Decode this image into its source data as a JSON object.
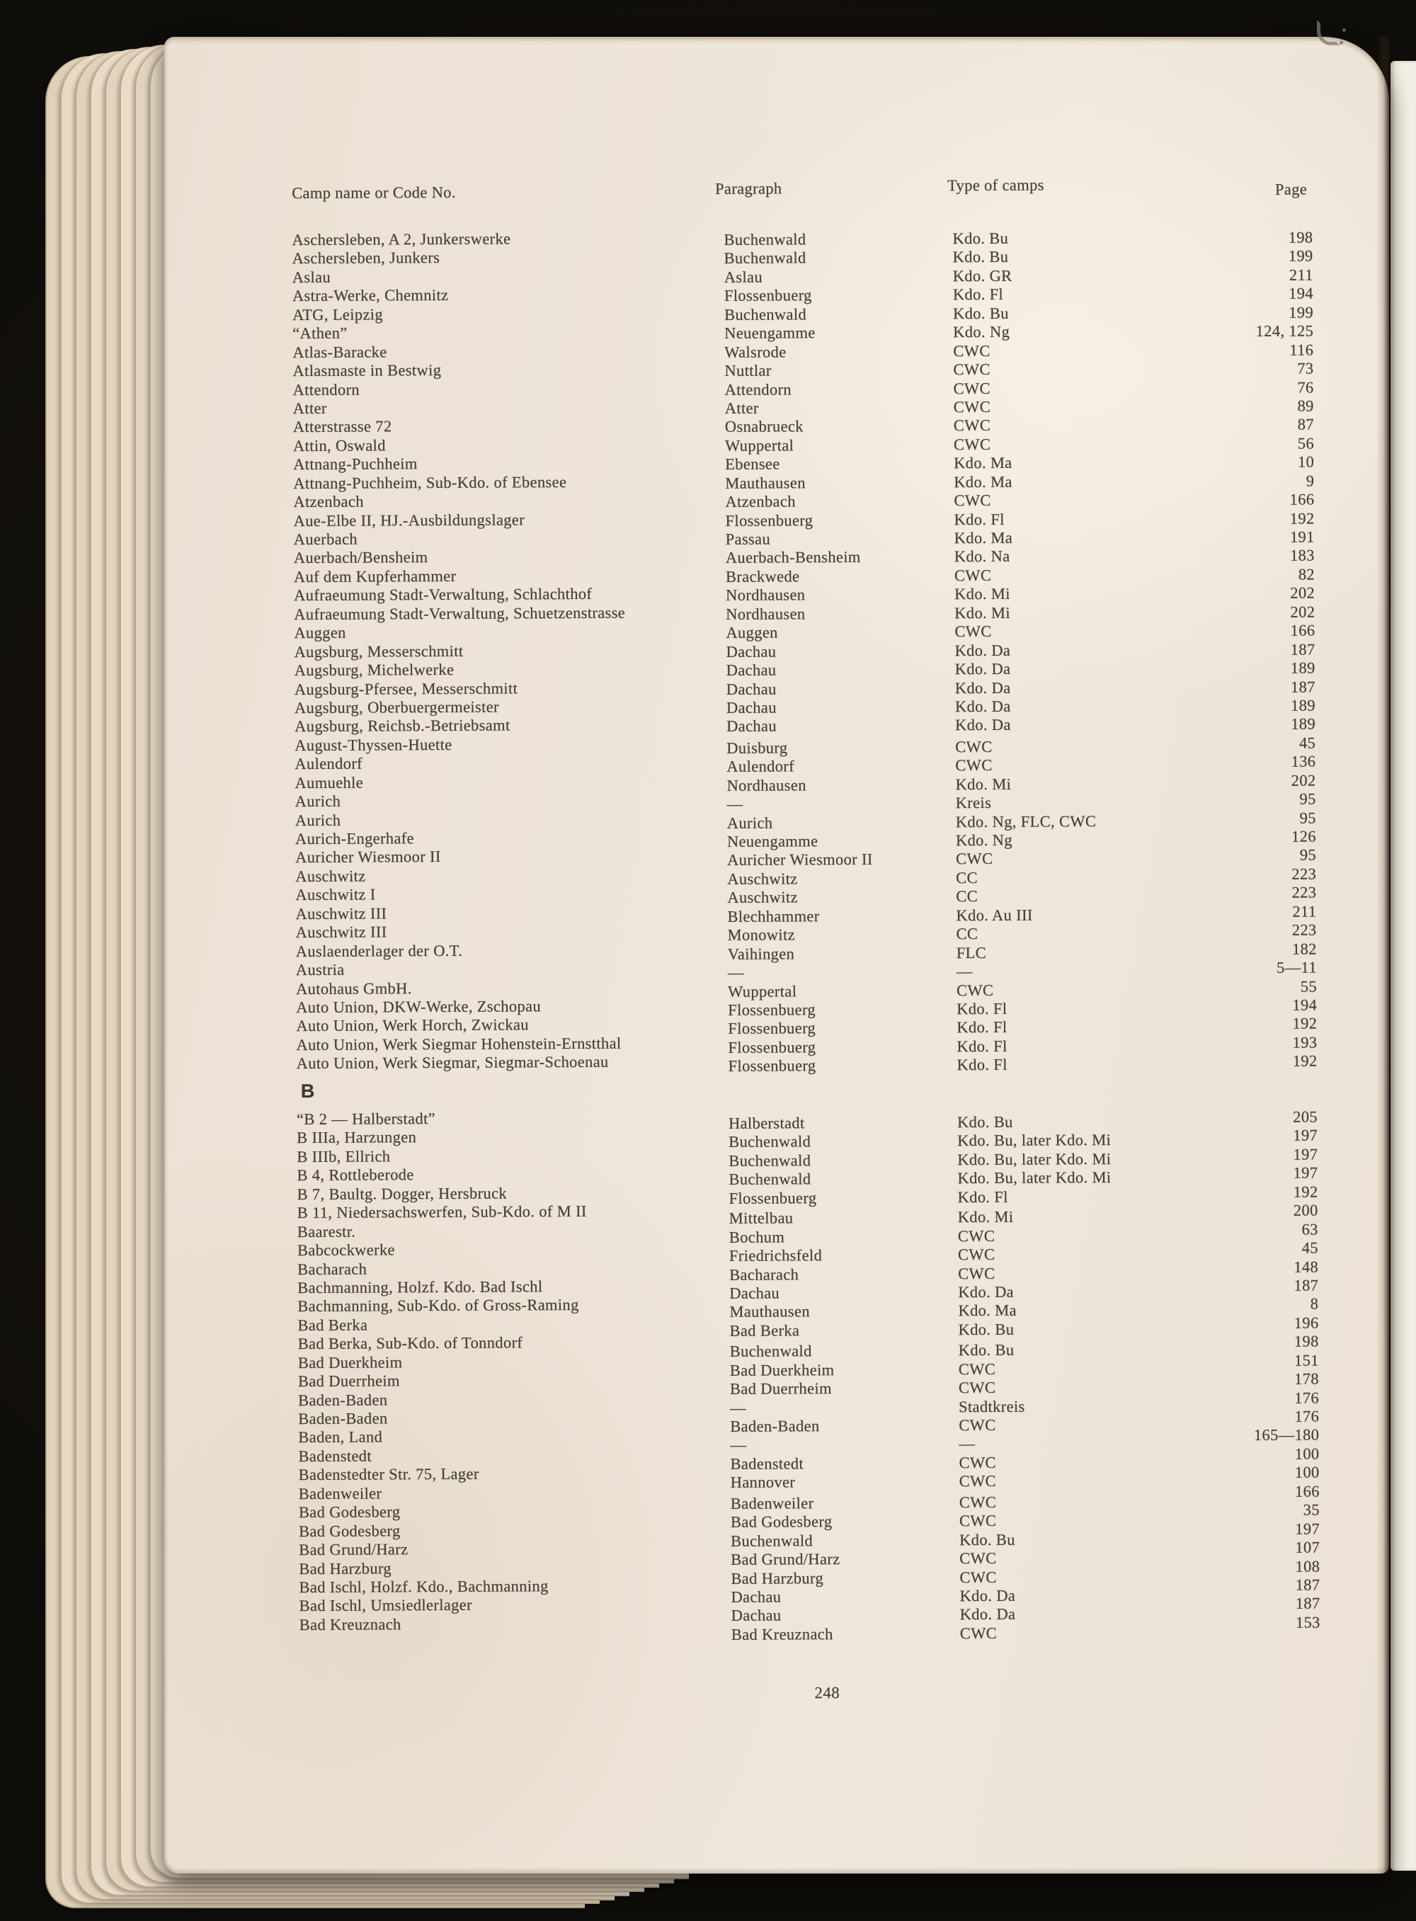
{
  "page": {
    "folio": "248",
    "colors": {
      "paper": "#efe7dc",
      "ink": "#46413a",
      "background": "#14110d",
      "next_page": "#f2efe7"
    }
  },
  "table": {
    "headers": {
      "camp": "Camp name or Code No.",
      "paragraph": "Paragraph",
      "type": "Type of camps",
      "page": "Page"
    },
    "sections": [
      {
        "label": "",
        "rows": [
          {
            "camp": "Aschersleben, A 2, Junkerswerke",
            "paragraph": "Buchenwald",
            "type": "Kdo. Bu",
            "page": "198"
          },
          {
            "camp": "Aschersleben, Junkers",
            "paragraph": "Buchenwald",
            "type": "Kdo. Bu",
            "page": "199"
          },
          {
            "camp": "Aslau",
            "paragraph": "Aslau",
            "type": "Kdo. GR",
            "page": "211"
          },
          {
            "camp": "Astra-Werke, Chemnitz",
            "paragraph": "Flossenbuerg",
            "type": "Kdo. Fl",
            "page": "194"
          },
          {
            "camp": "ATG, Leipzig",
            "paragraph": "Buchenwald",
            "type": "Kdo. Bu",
            "page": "199"
          },
          {
            "camp": "“Athen”",
            "paragraph": "Neuengamme",
            "type": "Kdo. Ng",
            "page": "124, 125"
          },
          {
            "camp": "Atlas-Baracke",
            "paragraph": "Walsrode",
            "type": "CWC",
            "page": "116"
          },
          {
            "camp": "Atlasmaste in Bestwig",
            "paragraph": "Nuttlar",
            "type": "CWC",
            "page": "73"
          },
          {
            "camp": "Attendorn",
            "paragraph": "Attendorn",
            "type": "CWC",
            "page": "76"
          },
          {
            "camp": "Atter",
            "paragraph": "Atter",
            "type": "CWC",
            "page": "89"
          },
          {
            "camp": "Atterstrasse 72",
            "paragraph": "Osnabrueck",
            "type": "CWC",
            "page": "87"
          },
          {
            "camp": "Attin, Oswald",
            "paragraph": "Wuppertal",
            "type": "CWC",
            "page": "56"
          },
          {
            "camp": "Attnang-Puchheim",
            "paragraph": "Ebensee",
            "type": "Kdo. Ma",
            "page": "10"
          },
          {
            "camp": "Attnang-Puchheim, Sub-Kdo. of Ebensee",
            "paragraph": "Mauthausen",
            "type": "Kdo. Ma",
            "page": "9"
          },
          {
            "camp": "Atzenbach",
            "paragraph": "Atzenbach",
            "type": "CWC",
            "page": "166"
          },
          {
            "camp": "Aue-Elbe II, HJ.-Ausbildungslager",
            "paragraph": "Flossenbuerg",
            "type": "Kdo. Fl",
            "page": "192"
          },
          {
            "camp": "Auerbach",
            "paragraph": "Passau",
            "type": "Kdo. Ma",
            "page": "191"
          },
          {
            "camp": "Auerbach/Bensheim",
            "paragraph": "Auerbach-Bensheim",
            "type": "Kdo. Na",
            "page": "183"
          },
          {
            "camp": "Auf dem Kupferhammer",
            "paragraph": "Brackwede",
            "type": "CWC",
            "page": "82"
          },
          {
            "camp": "Aufraeumung Stadt-Verwaltung, Schlachthof",
            "paragraph": "Nordhausen",
            "type": "Kdo. Mi",
            "page": "202"
          },
          {
            "camp": "Aufraeumung Stadt-Verwaltung, Schuetzenstrasse",
            "paragraph": "Nordhausen",
            "type": "Kdo. Mi",
            "page": "202"
          },
          {
            "camp": "Auggen",
            "paragraph": "Auggen",
            "type": "CWC",
            "page": "166"
          },
          {
            "camp": "Augsburg, Messerschmitt",
            "paragraph": "Dachau",
            "type": "Kdo. Da",
            "page": "187"
          },
          {
            "camp": "Augsburg, Michelwerke",
            "paragraph": "Dachau",
            "type": "Kdo. Da",
            "page": "189"
          },
          {
            "camp": "Augsburg-Pfersee, Messerschmitt",
            "paragraph": "Dachau",
            "type": "Kdo. Da",
            "page": "187"
          },
          {
            "camp": "Augsburg, Oberbuergermeister",
            "paragraph": "Dachau",
            "type": "Kdo. Da",
            "page": "189"
          },
          {
            "camp": "Augsburg, Reichsb.-Betriebsamt",
            "paragraph": "Dachau",
            "type": "Kdo. Da",
            "page": "189"
          },
          {
            "camp": "August-Thyssen-Huette",
            "paragraph": "Duisburg",
            "type": "CWC",
            "page": "45"
          },
          {
            "camp": "Aulendorf",
            "paragraph": "Aulendorf",
            "type": "CWC",
            "page": "136"
          },
          {
            "camp": "Aumuehle",
            "paragraph": "Nordhausen",
            "type": "Kdo. Mi",
            "page": "202"
          },
          {
            "camp": "Aurich",
            "paragraph": "—",
            "type": "Kreis",
            "page": "95"
          },
          {
            "camp": "Aurich",
            "paragraph": "Aurich",
            "type": "Kdo. Ng, FLC, CWC",
            "page": "95"
          },
          {
            "camp": "Aurich-Engerhafe",
            "paragraph": "Neuengamme",
            "type": "Kdo. Ng",
            "page": "126"
          },
          {
            "camp": "Auricher Wiesmoor II",
            "paragraph": "Auricher Wiesmoor II",
            "type": "CWC",
            "page": "95"
          },
          {
            "camp": "Auschwitz",
            "paragraph": "Auschwitz",
            "type": "CC",
            "page": "223"
          },
          {
            "camp": "Auschwitz I",
            "paragraph": "Auschwitz",
            "type": "CC",
            "page": "223"
          },
          {
            "camp": "Auschwitz III",
            "paragraph": "Blechhammer",
            "type": "Kdo. Au III",
            "page": "211"
          },
          {
            "camp": "Auschwitz III",
            "paragraph": "Monowitz",
            "type": "CC",
            "page": "223"
          },
          {
            "camp": "Auslaenderlager der O.T.",
            "paragraph": "Vaihingen",
            "type": "FLC",
            "page": "182"
          },
          {
            "camp": "Austria",
            "paragraph": "—",
            "type": "—",
            "page": "5—11"
          },
          {
            "camp": "Autohaus GmbH.",
            "paragraph": "Wuppertal",
            "type": "CWC",
            "page": "55"
          },
          {
            "camp": "Auto Union, DKW-Werke, Zschopau",
            "paragraph": "Flossenbuerg",
            "type": "Kdo. Fl",
            "page": "194"
          },
          {
            "camp": "Auto Union, Werk Horch, Zwickau",
            "paragraph": "Flossenbuerg",
            "type": "Kdo. Fl",
            "page": "192"
          },
          {
            "camp": "Auto Union, Werk Siegmar Hohenstein-Ernstthal",
            "paragraph": "Flossenbuerg",
            "type": "Kdo. Fl",
            "page": "193"
          },
          {
            "camp": "Auto Union, Werk Siegmar, Siegmar-Schoenau",
            "paragraph": "Flossenbuerg",
            "type": "Kdo. Fl",
            "page": "192"
          }
        ]
      },
      {
        "label": "B",
        "rows": [
          {
            "camp": "“B 2 — Halberstadt”",
            "paragraph": "Halberstadt",
            "type": "Kdo. Bu",
            "page": "205"
          },
          {
            "camp": "B IIIa, Harzungen",
            "paragraph": "Buchenwald",
            "type": "Kdo. Bu, later Kdo. Mi",
            "page": "197"
          },
          {
            "camp": "B IIIb, Ellrich",
            "paragraph": "Buchenwald",
            "type": "Kdo. Bu, later Kdo. Mi",
            "page": "197"
          },
          {
            "camp": "B 4, Rottleberode",
            "paragraph": "Buchenwald",
            "type": "Kdo. Bu, later Kdo. Mi",
            "page": "197"
          },
          {
            "camp": "B 7, Baultg. Dogger, Hersbruck",
            "paragraph": "Flossenbuerg",
            "type": "Kdo. Fl",
            "page": "192"
          },
          {
            "camp": "B 11, Niedersachswerfen, Sub-Kdo. of M II",
            "paragraph": "Mittelbau",
            "type": "Kdo. Mi",
            "page": "200"
          },
          {
            "camp": "Baarestr.",
            "paragraph": "Bochum",
            "type": "CWC",
            "page": "63"
          },
          {
            "camp": "Babcockwerke",
            "paragraph": "Friedrichsfeld",
            "type": "CWC",
            "page": "45"
          },
          {
            "camp": "Bacharach",
            "paragraph": "Bacharach",
            "type": "CWC",
            "page": "148"
          },
          {
            "camp": "Bachmanning, Holzf. Kdo. Bad Ischl",
            "paragraph": "Dachau",
            "type": "Kdo. Da",
            "page": "187"
          },
          {
            "camp": "Bachmanning, Sub-Kdo. of Gross-Raming",
            "paragraph": "Mauthausen",
            "type": "Kdo. Ma",
            "page": "8"
          },
          {
            "camp": "Bad Berka",
            "paragraph": "Bad Berka",
            "type": "Kdo. Bu",
            "page": "196"
          },
          {
            "camp": "Bad Berka, Sub-Kdo. of Tonndorf",
            "paragraph": "Buchenwald",
            "type": "Kdo. Bu",
            "page": "198"
          },
          {
            "camp": "Bad Duerkheim",
            "paragraph": "Bad Duerkheim",
            "type": "CWC",
            "page": "151"
          },
          {
            "camp": "Bad Duerrheim",
            "paragraph": "Bad Duerrheim",
            "type": "CWC",
            "page": "178"
          },
          {
            "camp": "Baden-Baden",
            "paragraph": "—",
            "type": "Stadtkreis",
            "page": "176"
          },
          {
            "camp": "Baden-Baden",
            "paragraph": "Baden-Baden",
            "type": "CWC",
            "page": "176"
          },
          {
            "camp": "Baden, Land",
            "paragraph": "—",
            "type": "—",
            "page": "165—180"
          },
          {
            "camp": "Badenstedt",
            "paragraph": "Badenstedt",
            "type": "CWC",
            "page": "100"
          },
          {
            "camp": "Badenstedter Str. 75, Lager",
            "paragraph": "Hannover",
            "type": "CWC",
            "page": "100"
          },
          {
            "camp": "Badenweiler",
            "paragraph": "Badenweiler",
            "type": "CWC",
            "page": "166"
          },
          {
            "camp": "Bad Godesberg",
            "paragraph": "Bad Godesberg",
            "type": "CWC",
            "page": "35"
          },
          {
            "camp": "Bad Godesberg",
            "paragraph": "Buchenwald",
            "type": "Kdo. Bu",
            "page": "197"
          },
          {
            "camp": "Bad Grund/Harz",
            "paragraph": "Bad Grund/Harz",
            "type": "CWC",
            "page": "107"
          },
          {
            "camp": "Bad Harzburg",
            "paragraph": "Bad Harzburg",
            "type": "CWC",
            "page": "108"
          },
          {
            "camp": "Bad Ischl, Holzf. Kdo., Bachmanning",
            "paragraph": "Dachau",
            "type": "Kdo. Da",
            "page": "187"
          },
          {
            "camp": "Bad Ischl, Umsiedlerlager",
            "paragraph": "Dachau",
            "type": "Kdo. Da",
            "page": "187"
          },
          {
            "camp": "Bad Kreuznach",
            "paragraph": "Bad Kreuznach",
            "type": "CWC",
            "page": "153"
          }
        ]
      }
    ]
  }
}
